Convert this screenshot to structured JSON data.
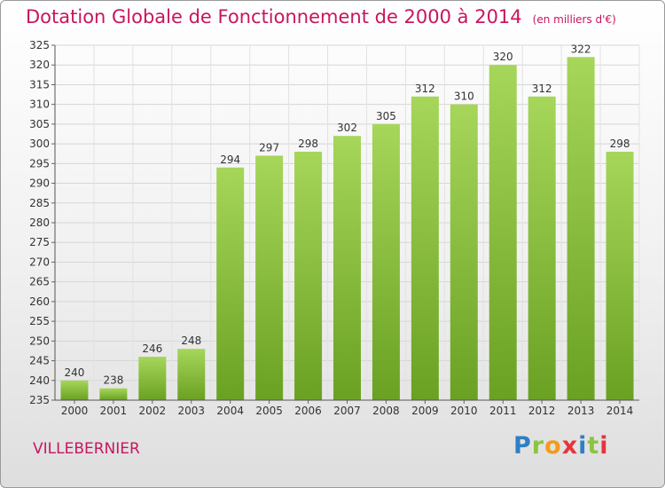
{
  "header": {
    "title": "Dotation Globale de Fonctionnement de 2000 à 2014",
    "unit": "(en milliers d'€)"
  },
  "footer": {
    "commune": "VILLEBERNIER",
    "logo": "Proxiti"
  },
  "colors": {
    "title": "#c8155e",
    "bar_light": "#a6d65a",
    "bar_dark": "#6aa123"
  },
  "chart_data": {
    "type": "bar",
    "title": "Dotation Globale de Fonctionnement de 2000 à 2014",
    "subtitle": "(en milliers d'€)",
    "xlabel": "",
    "ylabel": "",
    "categories": [
      "2000",
      "2001",
      "2002",
      "2003",
      "2004",
      "2005",
      "2006",
      "2007",
      "2008",
      "2009",
      "2010",
      "2011",
      "2012",
      "2013",
      "2014"
    ],
    "values": [
      240,
      238,
      246,
      248,
      294,
      297,
      298,
      302,
      305,
      312,
      310,
      320,
      312,
      322,
      298
    ],
    "ylim": [
      235,
      325
    ],
    "ytick_step": 5,
    "grid": true,
    "data_labels": true
  }
}
